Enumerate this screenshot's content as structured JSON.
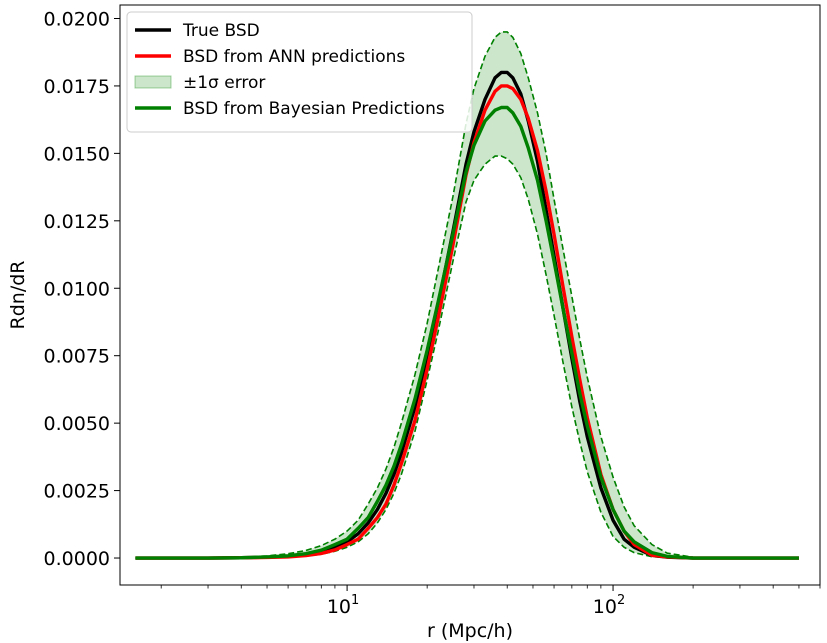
{
  "chart_data": {
    "type": "line",
    "title": "",
    "xlabel": "r (Mpc/h)",
    "ylabel": "Rdn/dR",
    "xscale": "log",
    "xlim": [
      1.4,
      600
    ],
    "ylim": [
      -0.001,
      0.0205
    ],
    "grid": false,
    "legend_position": "top-left",
    "y_ticks": [
      {
        "value": 0.0,
        "label": "0.0000"
      },
      {
        "value": 0.0025,
        "label": "0.0025"
      },
      {
        "value": 0.005,
        "label": "0.0050"
      },
      {
        "value": 0.0075,
        "label": "0.0075"
      },
      {
        "value": 0.01,
        "label": "0.0100"
      },
      {
        "value": 0.0125,
        "label": "0.0125"
      },
      {
        "value": 0.015,
        "label": "0.0150"
      },
      {
        "value": 0.0175,
        "label": "0.0175"
      },
      {
        "value": 0.02,
        "label": "0.0200"
      }
    ],
    "x_ticks": [
      {
        "value": 10,
        "base": "10",
        "exp": "1"
      },
      {
        "value": 100,
        "base": "10",
        "exp": "2"
      }
    ],
    "x": [
      1.6,
      2,
      3,
      4,
      5,
      6,
      7,
      8,
      9,
      10,
      11,
      12,
      13,
      14,
      15,
      16,
      18,
      20,
      22,
      25,
      28,
      30,
      33,
      36,
      38,
      40,
      42,
      45,
      48,
      52,
      56,
      60,
      65,
      70,
      75,
      80,
      90,
      100,
      110,
      120,
      140,
      160,
      200,
      250,
      300,
      400,
      500
    ],
    "series": [
      {
        "name": "True BSD",
        "color": "#000000",
        "role": "line",
        "values": [
          0,
          0,
          0,
          1e-05,
          3e-05,
          6e-05,
          0.00012,
          0.00022,
          0.00038,
          0.0006,
          0.0009,
          0.0013,
          0.0018,
          0.0024,
          0.0031,
          0.0039,
          0.0056,
          0.0075,
          0.0094,
          0.0121,
          0.0146,
          0.0158,
          0.017,
          0.0178,
          0.018,
          0.018,
          0.0178,
          0.0172,
          0.0162,
          0.0147,
          0.0129,
          0.0112,
          0.0092,
          0.0074,
          0.0058,
          0.0045,
          0.0026,
          0.0014,
          0.0007,
          0.0004,
          0.0001,
          3e-05,
          0,
          0,
          0,
          0,
          0
        ]
      },
      {
        "name": "BSD from ANN predictions",
        "color": "#ff0000",
        "role": "line",
        "values": [
          0,
          0,
          0,
          1e-05,
          2e-05,
          4e-05,
          9e-05,
          0.00017,
          0.0003,
          0.0005,
          0.0007,
          0.0011,
          0.0015,
          0.002,
          0.0027,
          0.0035,
          0.0051,
          0.007,
          0.0089,
          0.0116,
          0.0142,
          0.0154,
          0.0166,
          0.0173,
          0.0175,
          0.0175,
          0.0174,
          0.017,
          0.0163,
          0.0151,
          0.0136,
          0.012,
          0.01,
          0.0082,
          0.0066,
          0.0052,
          0.0031,
          0.0018,
          0.001,
          0.0005,
          0.0001,
          4e-05,
          0,
          0,
          0,
          0,
          0
        ]
      },
      {
        "name": "BSD from Bayesian Predictions",
        "color": "#008000",
        "role": "line",
        "values": [
          0,
          0,
          0,
          1e-05,
          4e-05,
          8e-05,
          0.00016,
          0.00029,
          0.0005,
          0.0007,
          0.0011,
          0.0015,
          0.0021,
          0.0027,
          0.0034,
          0.0042,
          0.0059,
          0.0077,
          0.0095,
          0.012,
          0.0143,
          0.0153,
          0.0162,
          0.0166,
          0.0167,
          0.0167,
          0.0165,
          0.016,
          0.0152,
          0.014,
          0.0125,
          0.011,
          0.0092,
          0.0076,
          0.0061,
          0.0049,
          0.003,
          0.0018,
          0.001,
          0.0006,
          0.0002,
          6e-05,
          0,
          0,
          0,
          0,
          0
        ]
      },
      {
        "name": "±1σ error",
        "color": "#008000",
        "role": "band",
        "lower": [
          0,
          0,
          0,
          0,
          1e-05,
          3e-05,
          7e-05,
          0.00014,
          0.00025,
          0.0004,
          0.0006,
          0.0009,
          0.0013,
          0.0018,
          0.0024,
          0.0031,
          0.0047,
          0.0066,
          0.0084,
          0.011,
          0.0132,
          0.014,
          0.0146,
          0.0149,
          0.0149,
          0.0148,
          0.0146,
          0.0141,
          0.0133,
          0.012,
          0.0105,
          0.009,
          0.0072,
          0.0056,
          0.0043,
          0.0032,
          0.0017,
          0.0008,
          0.0004,
          0.0002,
          5e-05,
          1e-05,
          0,
          0,
          0,
          0,
          0
        ],
        "upper": [
          0,
          0,
          1e-05,
          3e-05,
          8e-05,
          0.00016,
          0.00028,
          0.00046,
          0.0007,
          0.001,
          0.0014,
          0.002,
          0.0026,
          0.0033,
          0.0041,
          0.005,
          0.0068,
          0.0087,
          0.0107,
          0.0134,
          0.0161,
          0.0174,
          0.0186,
          0.0193,
          0.0195,
          0.0195,
          0.0193,
          0.0187,
          0.0178,
          0.0165,
          0.015,
          0.0133,
          0.0114,
          0.0097,
          0.0081,
          0.0067,
          0.0045,
          0.003,
          0.0019,
          0.0012,
          0.0005,
          0.00018,
          3e-05,
          0,
          0,
          0,
          0
        ]
      }
    ],
    "legend": [
      {
        "label": "True BSD",
        "type": "line",
        "color": "#000000"
      },
      {
        "label": "BSD from ANN predictions",
        "type": "line",
        "color": "#ff0000"
      },
      {
        "label": "±1σ error",
        "type": "patch",
        "color": "#008000"
      },
      {
        "label": "BSD from Bayesian Predictions",
        "type": "line",
        "color": "#008000"
      }
    ]
  }
}
